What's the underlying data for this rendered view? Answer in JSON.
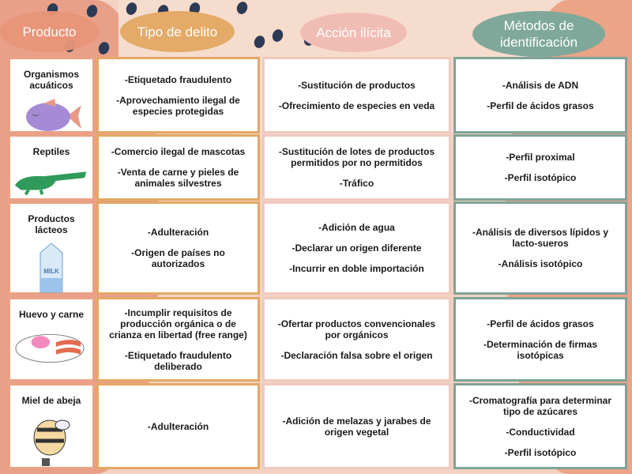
{
  "headers": {
    "producto": "Producto",
    "tipo": "Tipo de delito",
    "accion": "Acción ilícita",
    "metodos": "Métodos de identificación"
  },
  "colors": {
    "producto": "#e8957a",
    "tipo": "#e3aa68",
    "accion": "#f0bdb5",
    "metodos": "#7fa89a"
  },
  "rows": [
    {
      "producto": "Organismos acuáticos",
      "icon": "fish-icon",
      "tipo": [
        "-Etiquetado fraudulento",
        "-Aprovechamiento ilegal de especies protegidas"
      ],
      "accion": [
        "-Sustitución de productos",
        "-Ofrecimiento de especies en veda"
      ],
      "metodos": [
        "-Análisis de ADN",
        "-Perfil de ácidos grasos"
      ]
    },
    {
      "producto": "Reptiles",
      "icon": "crocodile-icon",
      "tipo": [
        "-Comercio ilegal de mascotas",
        "-Venta de carne y pieles de animales silvestres"
      ],
      "accion": [
        "-Sustitución de lotes de productos permitidos por no permitidos",
        "-Tráfico"
      ],
      "metodos": [
        "-Perfil proximal",
        "-Perfil isotópico"
      ]
    },
    {
      "producto": "Productos lácteos",
      "icon": "milk-carton-icon",
      "icon_text": "MILK",
      "tipo": [
        "-Adulteración",
        "-Origen de países no autorizados"
      ],
      "accion": [
        "-Adición de agua",
        "-Declarar un origen diferente",
        "-Incurrir en doble importación"
      ],
      "metodos": [
        "-Análisis de diversos lípidos y lacto-sueros",
        "-Análisis isotópico"
      ]
    },
    {
      "producto": "Huevo y carne",
      "icon": "egg-bacon-plate-icon",
      "tipo": [
        "-Incumplir requisitos de producción orgánica o de crianza en libertad (free range)",
        "-Etiquetado fraudulento deliberado"
      ],
      "accion": [
        "-Ofertar productos convencionales por orgánicos",
        "-Declaración falsa sobre el origen"
      ],
      "metodos": [
        "-Perfil de ácidos grasos",
        "-Determinación de firmas isotópicas"
      ]
    },
    {
      "producto": "Miel de abeja",
      "icon": "bee-icon",
      "tipo": [
        "-Adulteración"
      ],
      "accion": [
        "-Adición de melazas y jarabes de origen vegetal"
      ],
      "metodos": [
        "-Cromatografía para determinar tipo de azúcares",
        "-Conductividad",
        "-Perfil isotópico"
      ]
    }
  ]
}
